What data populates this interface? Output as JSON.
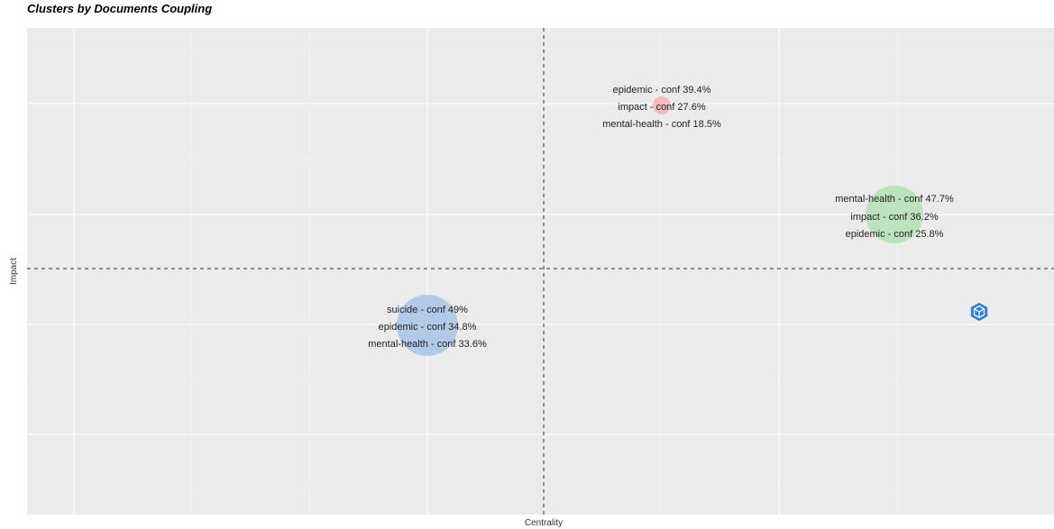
{
  "chart_data": {
    "type": "scatter",
    "title": "Clusters by Documents Coupling",
    "xlabel": "Centrality",
    "ylabel": "Impact",
    "x_ticks_shown": false,
    "y_ticks_shown": false,
    "grid": true,
    "reference_lines": "dashed median lines",
    "clusters": [
      {
        "color": "#f4b4b4",
        "labels": [
          "epidemic - conf 39.4%",
          "impact - conf 27.6%",
          "mental-health - conf 18.5%"
        ]
      },
      {
        "color": "#b5e0b5",
        "labels": [
          "mental-health - conf 47.7%",
          "impact - conf 36.2%",
          "epidemic - conf 25.8%"
        ]
      },
      {
        "color": "#a9c4e6",
        "labels": [
          "suicide - conf 49%",
          "epidemic - conf 34.8%",
          "mental-health - conf 33.6%"
        ]
      }
    ],
    "icon": "hexagon-cube-icon"
  }
}
